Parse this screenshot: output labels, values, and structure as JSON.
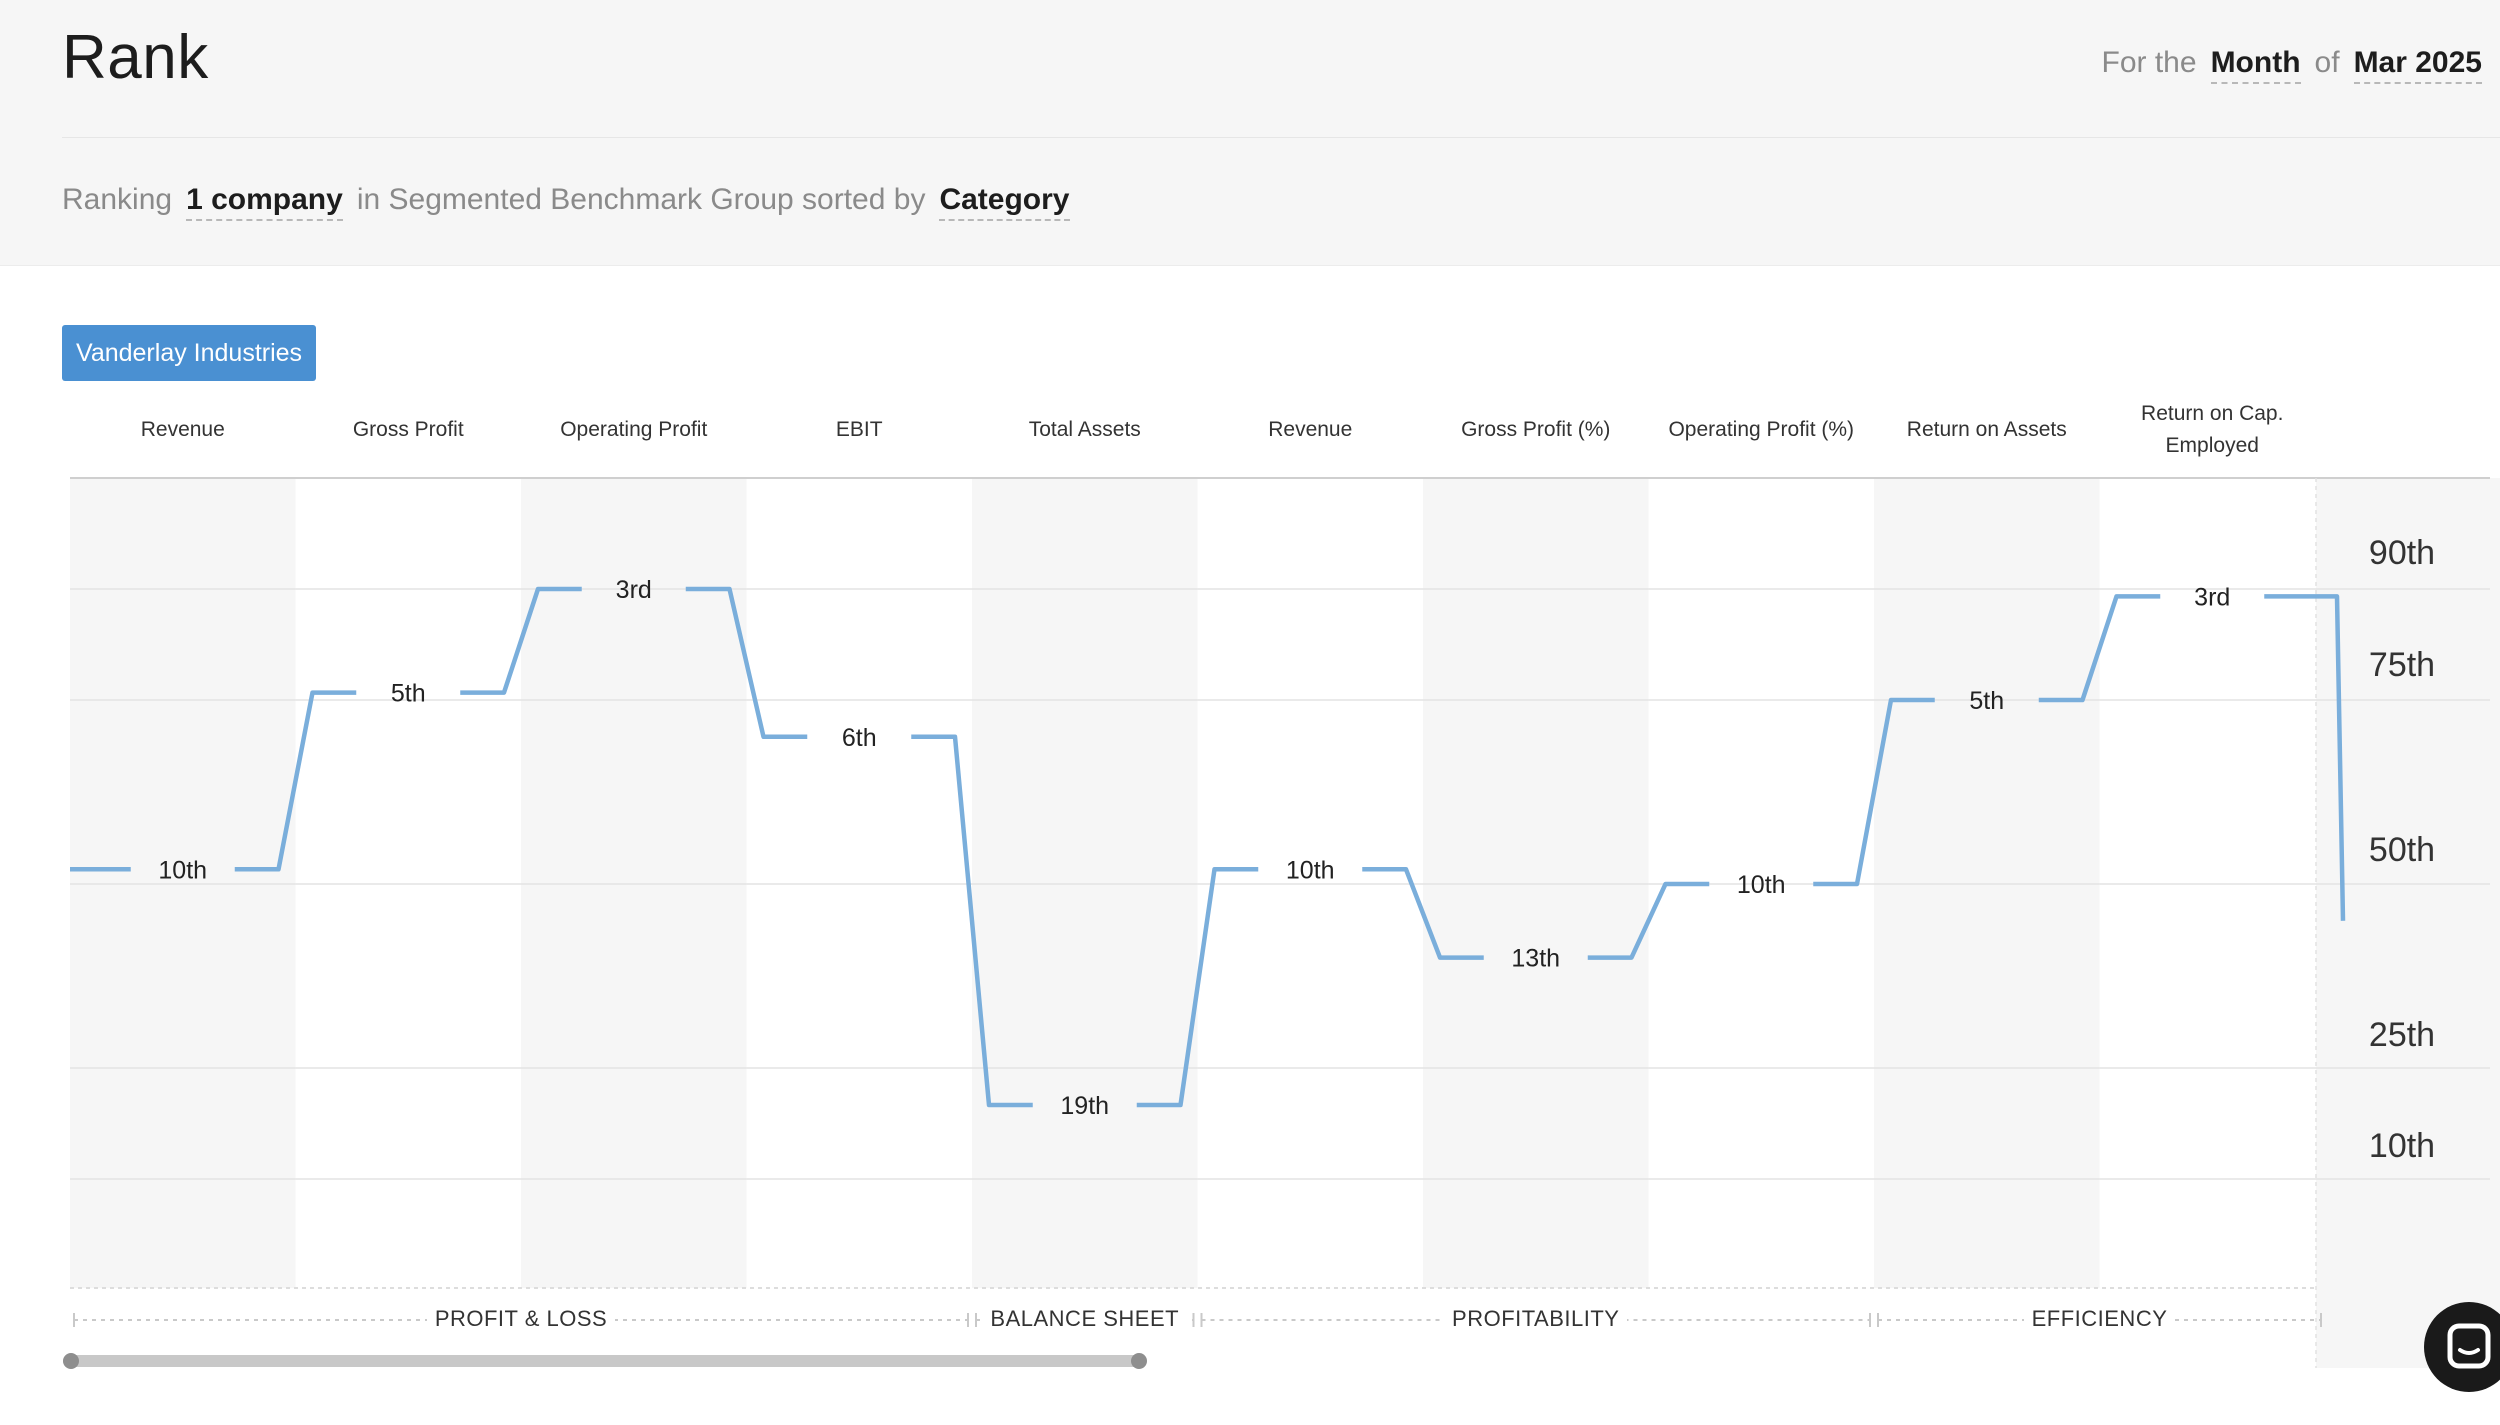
{
  "header": {
    "title": "Rank",
    "period_prefix": "For the",
    "period_unit": "Month",
    "period_of": "of",
    "period_value": "Mar 2025"
  },
  "ranking": {
    "prefix": "Ranking",
    "count": "1 company",
    "middle": "in Segmented Benchmark Group sorted by",
    "sort": "Category"
  },
  "company_chip": "Vanderlay Industries",
  "columns": [
    {
      "label": "Revenue",
      "rank": "10th",
      "percentile": 52
    },
    {
      "label": "Gross Profit",
      "rank": "5th",
      "percentile": 76
    },
    {
      "label": "Operating Profit",
      "rank": "3rd",
      "percentile": 90
    },
    {
      "label": "EBIT",
      "rank": "6th",
      "percentile": 70
    },
    {
      "label": "Total Assets",
      "rank": "19th",
      "percentile": 20
    },
    {
      "label": "Revenue",
      "rank": "10th",
      "percentile": 52
    },
    {
      "label": "Gross Profit (%)",
      "rank": "13th",
      "percentile": 40
    },
    {
      "label": "Operating Profit (%)",
      "rank": "10th",
      "percentile": 50
    },
    {
      "label": "Return on Assets",
      "rank": "5th",
      "percentile": 75
    },
    {
      "label": "Return on Cap. Employed",
      "rank": "3rd",
      "percentile": 89
    }
  ],
  "sections": [
    {
      "label": "PROFIT & LOSS",
      "start": 0,
      "end": 4
    },
    {
      "label": "BALANCE SHEET",
      "start": 4,
      "end": 5
    },
    {
      "label": "PROFITABILITY",
      "start": 5,
      "end": 8
    },
    {
      "label": "EFFICIENCY",
      "start": 8,
      "end": 10
    }
  ],
  "y_axis_ticks": [
    "90th",
    "75th",
    "50th",
    "25th",
    "10th"
  ],
  "colors": {
    "line": "#7aaedb",
    "chip": "#4a90d2",
    "band_shaded": "#f6f6f6"
  },
  "icons": {
    "chat_launcher": "chat-bubble-icon"
  },
  "chart_data": {
    "type": "line",
    "categories": [
      "Revenue",
      "Gross Profit",
      "Operating Profit",
      "EBIT",
      "Total Assets",
      "Revenue",
      "Gross Profit (%)",
      "Operating Profit (%)",
      "Return on Assets",
      "Return on Cap. Employed"
    ],
    "series": [
      {
        "name": "Vanderlay Industries",
        "values": [
          52,
          76,
          90,
          70,
          20,
          52,
          40,
          50,
          75,
          89
        ],
        "labels": [
          "10th",
          "5th",
          "3rd",
          "6th",
          "19th",
          "10th",
          "13th",
          "10th",
          "5th",
          "3rd"
        ]
      }
    ],
    "y_ticks": [
      "90th",
      "75th",
      "50th",
      "25th",
      "10th"
    ],
    "ylabel": "",
    "xlabel": "",
    "grid": true,
    "legend": "none"
  }
}
